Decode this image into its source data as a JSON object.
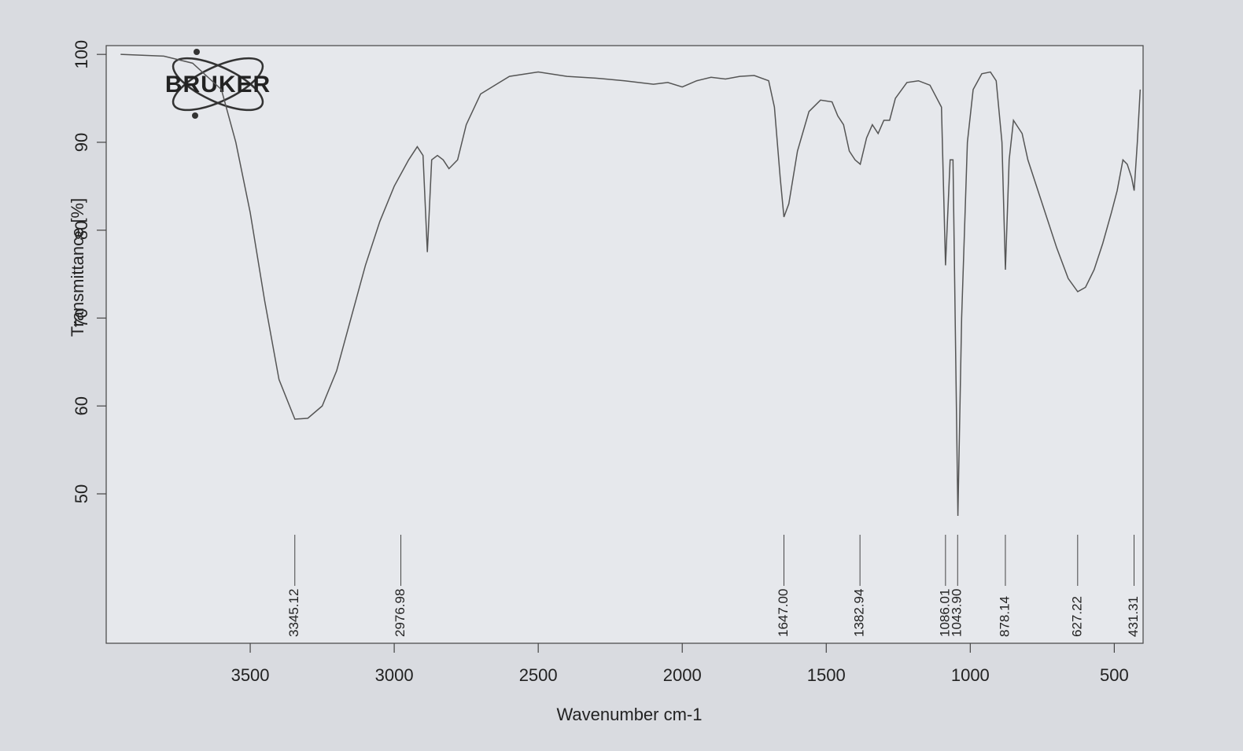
{
  "chart_data": {
    "type": "line",
    "logo": "BRUKER",
    "x_label": "Wavenumber cm-1",
    "y_label": "Transmittance [%]",
    "color": "#555555",
    "xlim": [
      4000,
      400
    ],
    "ylim": [
      33,
      101
    ],
    "xticks": [
      3500,
      3000,
      2500,
      2000,
      1500,
      1000,
      500
    ],
    "yticks": [
      50,
      60,
      70,
      80,
      90,
      100
    ],
    "x": [
      3950,
      3800,
      3700,
      3600,
      3550,
      3500,
      3450,
      3400,
      3345,
      3300,
      3250,
      3200,
      3150,
      3100,
      3050,
      3000,
      2950,
      2920,
      2900,
      2885,
      2870,
      2850,
      2830,
      2810,
      2780,
      2750,
      2700,
      2600,
      2500,
      2400,
      2300,
      2200,
      2100,
      2050,
      2000,
      1950,
      1900,
      1850,
      1800,
      1750,
      1700,
      1680,
      1660,
      1647,
      1630,
      1600,
      1560,
      1520,
      1480,
      1460,
      1440,
      1420,
      1400,
      1382,
      1360,
      1340,
      1320,
      1300,
      1280,
      1260,
      1220,
      1180,
      1140,
      1100,
      1086,
      1070,
      1060,
      1043,
      1030,
      1010,
      990,
      960,
      930,
      910,
      890,
      878,
      865,
      850,
      820,
      800,
      780,
      740,
      700,
      660,
      627,
      600,
      570,
      540,
      510,
      490,
      470,
      455,
      440,
      431,
      420,
      410
    ],
    "values": [
      100,
      99.8,
      99,
      96,
      90,
      82,
      72,
      63,
      58.5,
      58.6,
      60,
      64,
      70,
      76,
      81,
      85,
      88,
      89.5,
      88.5,
      77.5,
      88,
      88.5,
      88,
      87,
      88,
      92,
      95.5,
      97.5,
      98,
      97.5,
      97.3,
      97,
      96.6,
      96.8,
      96.3,
      97,
      97.4,
      97.2,
      97.5,
      97.6,
      97,
      94,
      86,
      81.5,
      83,
      89,
      93.5,
      94.8,
      94.6,
      93,
      92,
      89,
      88,
      87.5,
      90.5,
      92,
      91,
      92.5,
      92.5,
      95,
      96.8,
      97,
      96.5,
      94,
      76,
      88,
      88,
      47.5,
      70,
      90,
      96,
      97.8,
      98,
      97,
      90,
      75.5,
      88,
      92.5,
      91,
      88,
      86,
      82,
      78,
      74.5,
      73,
      73.5,
      75.5,
      78.5,
      82,
      84.5,
      88,
      87.5,
      86,
      84.5,
      90,
      96
    ],
    "peak_labels": [
      {
        "value": 3345.12,
        "label": "3345.12"
      },
      {
        "value": 2976.98,
        "label": "2976.98"
      },
      {
        "value": 1647.0,
        "label": "1647.00"
      },
      {
        "value": 1382.94,
        "label": "1382.94"
      },
      {
        "value": 1086.01,
        "label": "1086.01"
      },
      {
        "value": 1043.9,
        "label": "1043.90"
      },
      {
        "value": 878.14,
        "label": "878.14"
      },
      {
        "value": 627.22,
        "label": "627.22"
      },
      {
        "value": 431.31,
        "label": "431.31"
      }
    ]
  }
}
